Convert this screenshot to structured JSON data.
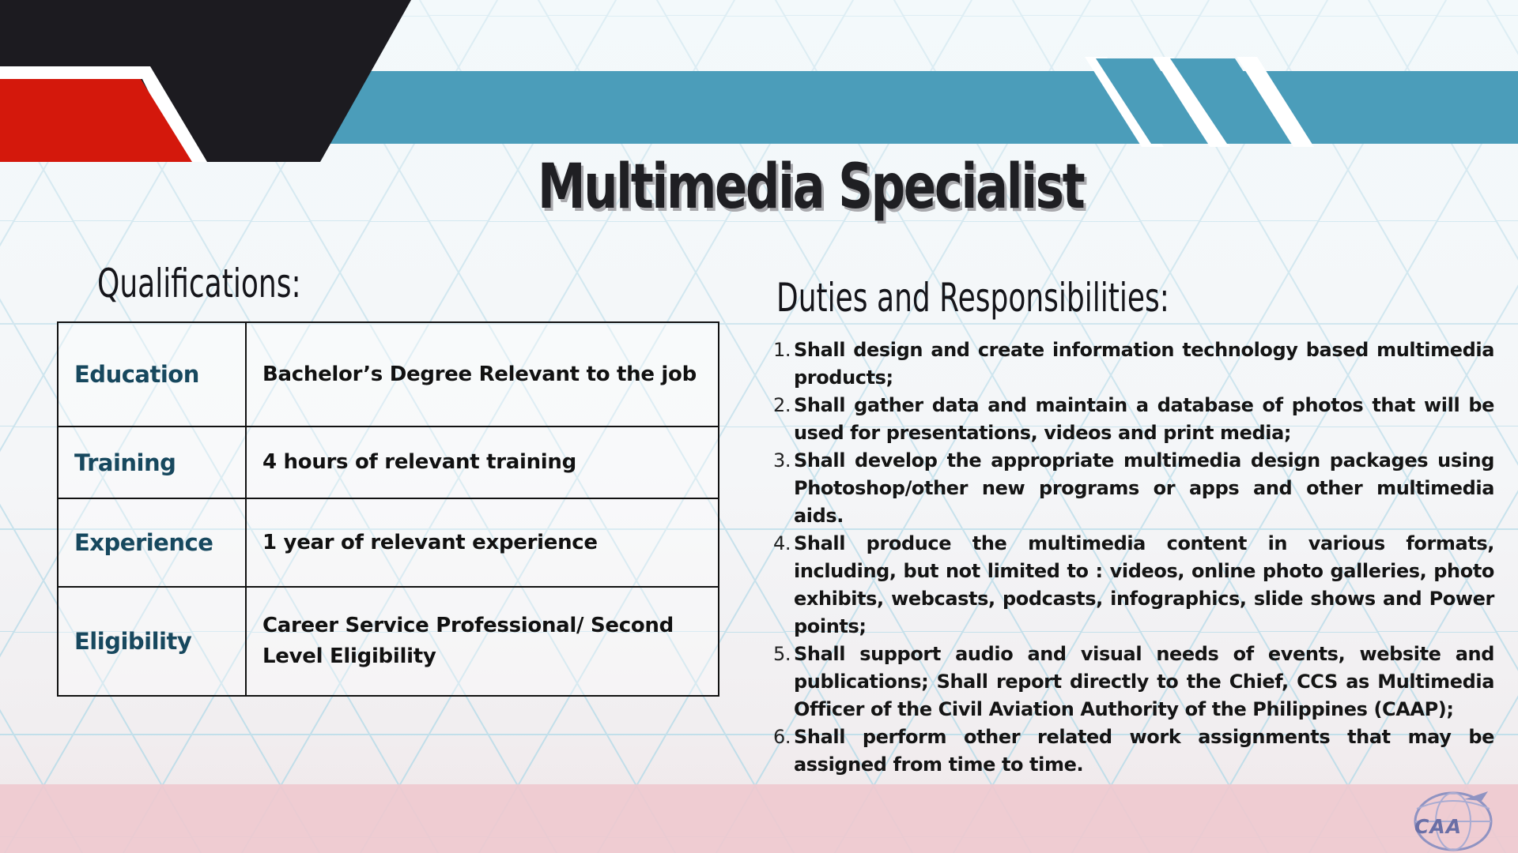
{
  "slide": {
    "title": "Multimedia Specialist",
    "colors": {
      "blue_stripe": "#4b9dba",
      "black_shape": "#1c1b20",
      "red_shape": "#d4180c",
      "label_text": "#17485e",
      "pink_band": "#eec9cf"
    }
  },
  "qualifications": {
    "heading": "Qualifications:",
    "rows": [
      {
        "label": "Education",
        "value": "Bachelor’s Degree Relevant to the job"
      },
      {
        "label": "Training",
        "value": "4 hours of relevant training"
      },
      {
        "label": "Experience",
        "value": "1 year of relevant experience"
      },
      {
        "label": "Eligibility",
        "value": "Career Service Professional/ Second Level Eligibility"
      }
    ]
  },
  "duties": {
    "heading": "Duties and Responsibilities:",
    "items": [
      {
        "number": "1.",
        "text": "Shall design and create information technology based multimedia products;"
      },
      {
        "number": "2.",
        "text": "Shall gather data and maintain a database of photos that will be used for presentations, videos and print media;"
      },
      {
        "number": "3.",
        "text": "Shall develop the appropriate multimedia design packages using Photoshop/other new programs or apps and other multimedia aids."
      },
      {
        "number": "4.",
        "text": "Shall produce the multimedia content in various formats, including, but not limited to : videos, online photo galleries, photo exhibits, webcasts, podcasts, infographics, slide shows and Power points;"
      },
      {
        "number": "5.",
        "text": "Shall support audio and visual needs of events, website and publications; Shall report directly to the Chief, CCS as Multimedia Officer of the Civil Aviation Authority of the Philippines (CAAP);"
      },
      {
        "number": "6.",
        "text": "Shall perform other related work assignments that may be assigned from time to time."
      }
    ]
  },
  "logo": {
    "text": "CAA",
    "icon": "caap-logo-icon"
  }
}
